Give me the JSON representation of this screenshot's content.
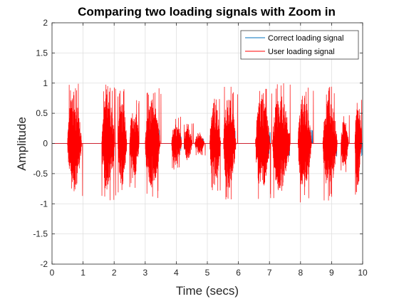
{
  "chart_data": {
    "type": "line",
    "title": "Comparing two loading signals with Zoom in",
    "xlabel": "Time (secs)",
    "ylabel": "Amplitude",
    "xlim": [
      0,
      10
    ],
    "ylim": [
      -2,
      2
    ],
    "x_ticks": [
      "0",
      "1",
      "2",
      "3",
      "4",
      "5",
      "6",
      "7",
      "8",
      "9",
      "10"
    ],
    "y_ticks": [
      "2",
      "1.5",
      "1",
      "0.5",
      "0",
      "-0.5",
      "-1",
      "-1.5",
      "-2"
    ],
    "grid": true,
    "legend_position": "top-right",
    "series": [
      {
        "name": "Correct loading signal",
        "color": "#0072BD",
        "bursts": [
          {
            "start": 0.52,
            "end": 1.0,
            "amplitude": 0.25
          },
          {
            "start": 1.62,
            "end": 2.05,
            "amplitude": 0.22
          },
          {
            "start": 2.15,
            "end": 2.42,
            "amplitude": 0.15
          },
          {
            "start": 2.52,
            "end": 2.8,
            "amplitude": 0.1
          },
          {
            "start": 3.05,
            "end": 3.5,
            "amplitude": 0.24
          },
          {
            "start": 3.85,
            "end": 4.2,
            "amplitude": 0.12
          },
          {
            "start": 4.25,
            "end": 4.5,
            "amplitude": 0.1
          },
          {
            "start": 4.6,
            "end": 4.9,
            "amplitude": 0.08
          },
          {
            "start": 5.12,
            "end": 5.45,
            "amplitude": 0.2
          },
          {
            "start": 5.55,
            "end": 5.95,
            "amplitude": 0.22
          },
          {
            "start": 6.58,
            "end": 7.05,
            "amplitude": 0.2
          },
          {
            "start": 7.12,
            "end": 7.7,
            "amplitude": 0.24
          },
          {
            "start": 7.95,
            "end": 8.4,
            "amplitude": 0.24
          },
          {
            "start": 8.75,
            "end": 9.22,
            "amplitude": 0.24
          },
          {
            "start": 9.32,
            "end": 9.55,
            "amplitude": 0.12
          },
          {
            "start": 9.78,
            "end": 10.0,
            "amplitude": 0.22
          }
        ]
      },
      {
        "name": "User loading signal",
        "color": "#FF0000",
        "bursts": [
          {
            "start": 0.5,
            "end": 1.02,
            "amplitude": 1.0
          },
          {
            "start": 1.6,
            "end": 2.08,
            "amplitude": 1.0
          },
          {
            "start": 2.12,
            "end": 2.45,
            "amplitude": 0.9
          },
          {
            "start": 2.5,
            "end": 2.85,
            "amplitude": 0.75
          },
          {
            "start": 3.0,
            "end": 3.55,
            "amplitude": 0.92
          },
          {
            "start": 3.85,
            "end": 4.22,
            "amplitude": 0.45
          },
          {
            "start": 4.25,
            "end": 4.55,
            "amplitude": 0.35
          },
          {
            "start": 4.6,
            "end": 4.95,
            "amplitude": 0.2
          },
          {
            "start": 5.08,
            "end": 5.48,
            "amplitude": 0.85
          },
          {
            "start": 5.52,
            "end": 5.98,
            "amplitude": 0.95
          },
          {
            "start": 6.55,
            "end": 7.08,
            "amplitude": 0.95
          },
          {
            "start": 7.1,
            "end": 7.75,
            "amplitude": 1.0
          },
          {
            "start": 7.92,
            "end": 8.42,
            "amplitude": 1.0
          },
          {
            "start": 8.72,
            "end": 9.25,
            "amplitude": 0.95
          },
          {
            "start": 9.3,
            "end": 9.58,
            "amplitude": 0.5
          },
          {
            "start": 9.75,
            "end": 10.0,
            "amplitude": 0.85
          }
        ]
      }
    ]
  }
}
